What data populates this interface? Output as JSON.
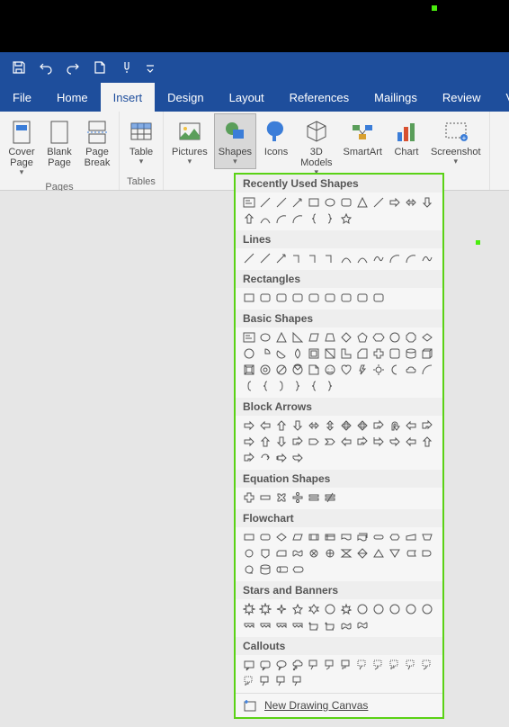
{
  "colors": {
    "ribbon_blue": "#1e4e9c",
    "ribbon_bg": "#f3f3f3",
    "doc_bg": "#e6e6e6",
    "highlight_border": "#5ad215",
    "icon_stroke": "#555"
  },
  "qat": [
    "save",
    "undo",
    "redo",
    "new-doc",
    "touch-mode",
    "customize"
  ],
  "tabs": [
    "File",
    "Home",
    "Insert",
    "Design",
    "Layout",
    "References",
    "Mailings",
    "Review",
    "View"
  ],
  "active_tab": "Insert",
  "ribbon_groups": [
    {
      "label": "Pages",
      "items": [
        {
          "name": "cover-page",
          "label": "Cover\nPage",
          "caret": true
        },
        {
          "name": "blank-page",
          "label": "Blank\nPage"
        },
        {
          "name": "page-break",
          "label": "Page\nBreak"
        }
      ]
    },
    {
      "label": "Tables",
      "items": [
        {
          "name": "table",
          "label": "Table",
          "caret": true
        }
      ]
    },
    {
      "label": "",
      "items": [
        {
          "name": "pictures",
          "label": "Pictures",
          "caret": true
        },
        {
          "name": "shapes",
          "label": "Shapes",
          "caret": true,
          "active": true
        },
        {
          "name": "icons",
          "label": "Icons"
        },
        {
          "name": "3d-models",
          "label": "3D\nModels",
          "caret": true
        },
        {
          "name": "smartart",
          "label": "SmartArt"
        },
        {
          "name": "chart",
          "label": "Chart"
        },
        {
          "name": "screenshot",
          "label": "Screenshot",
          "caret": true
        }
      ]
    }
  ],
  "shapes_dropdown": {
    "sections": [
      {
        "title": "Recently Used Shapes",
        "shapes": [
          "textbox",
          "line",
          "line",
          "arrow",
          "rect",
          "oval",
          "rrect",
          "tri",
          "line",
          "arrow-r",
          "arrow-lr",
          "arrow-d",
          "arrow-u",
          "curve",
          "arc",
          "arc",
          "brace-l",
          "brace-r",
          "star5"
        ],
        "rows": 2
      },
      {
        "title": "Lines",
        "shapes": [
          "line",
          "line",
          "arrow",
          "elbow",
          "elbow",
          "elbow",
          "curve",
          "curve",
          "freeform",
          "arc",
          "arc",
          "freeform"
        ],
        "rows": 1
      },
      {
        "title": "Rectangles",
        "shapes": [
          "rect",
          "rrect",
          "rrect",
          "rrect",
          "rrect",
          "rrect",
          "rrect",
          "rrect",
          "rrect"
        ],
        "rows": 1
      },
      {
        "title": "Basic Shapes",
        "shapes": [
          "textbox",
          "oval",
          "tri",
          "rtri",
          "para",
          "trap",
          "diamond",
          "pent",
          "hex",
          "hept",
          "oct",
          "dec",
          "dodec",
          "pie",
          "chord",
          "teardrop",
          "frame",
          "half",
          "L",
          "diag",
          "cross",
          "plaque",
          "can",
          "cube",
          "bevel",
          "donut",
          "noentry",
          "block",
          "fold",
          "smiley",
          "heart",
          "bolt",
          "sun",
          "moon",
          "cloud",
          "arc2",
          "bracket-l",
          "brace-l",
          "bracket-r",
          "brace-r",
          "brace-l",
          "brace-r"
        ],
        "rows": 4
      },
      {
        "title": "Block Arrows",
        "shapes": [
          "ar",
          "al",
          "au",
          "ad",
          "alr",
          "aud",
          "aquad",
          "aquad",
          "abent",
          "aturn",
          "al",
          "abent",
          "ar",
          "au",
          "ad",
          "abent",
          "apenta",
          "achev",
          "al",
          "abent",
          "acall",
          "anotch",
          "al",
          "au",
          "abent",
          "acirc",
          "astripe",
          "anotch"
        ],
        "rows": 3
      },
      {
        "title": "Equation Shapes",
        "shapes": [
          "plus",
          "minus",
          "mult",
          "div",
          "eq",
          "neq"
        ],
        "rows": 1
      },
      {
        "title": "Flowchart",
        "shapes": [
          "proc",
          "alt",
          "dec",
          "data",
          "predef",
          "intern",
          "doc",
          "multi",
          "term",
          "prep",
          "manin",
          "manop",
          "conn",
          "offconn",
          "card",
          "tape",
          "junc",
          "or",
          "collate",
          "sort",
          "extract",
          "merge",
          "stored",
          "delay",
          "seq",
          "mag",
          "direct",
          "disp"
        ],
        "rows": 3
      },
      {
        "title": "Stars and Banners",
        "shapes": [
          "burst8",
          "burst8",
          "star4",
          "star5",
          "star6",
          "star7",
          "star8",
          "star10",
          "star12",
          "star16",
          "star24",
          "star32",
          "ribbon",
          "ribbon",
          "ribbon",
          "ribbon",
          "scroll",
          "scroll",
          "wave",
          "dblwave"
        ],
        "rows": 2
      },
      {
        "title": "Callouts",
        "shapes": [
          "rectcall",
          "rrcall",
          "ovalcall",
          "cloudcall",
          "line1",
          "line2",
          "line3",
          "line1a",
          "line2a",
          "line3a",
          "line1b",
          "line2b",
          "line3b",
          "bord1",
          "bord2",
          "bord3"
        ],
        "rows": 2
      }
    ],
    "footer": "New Drawing Canvas"
  }
}
